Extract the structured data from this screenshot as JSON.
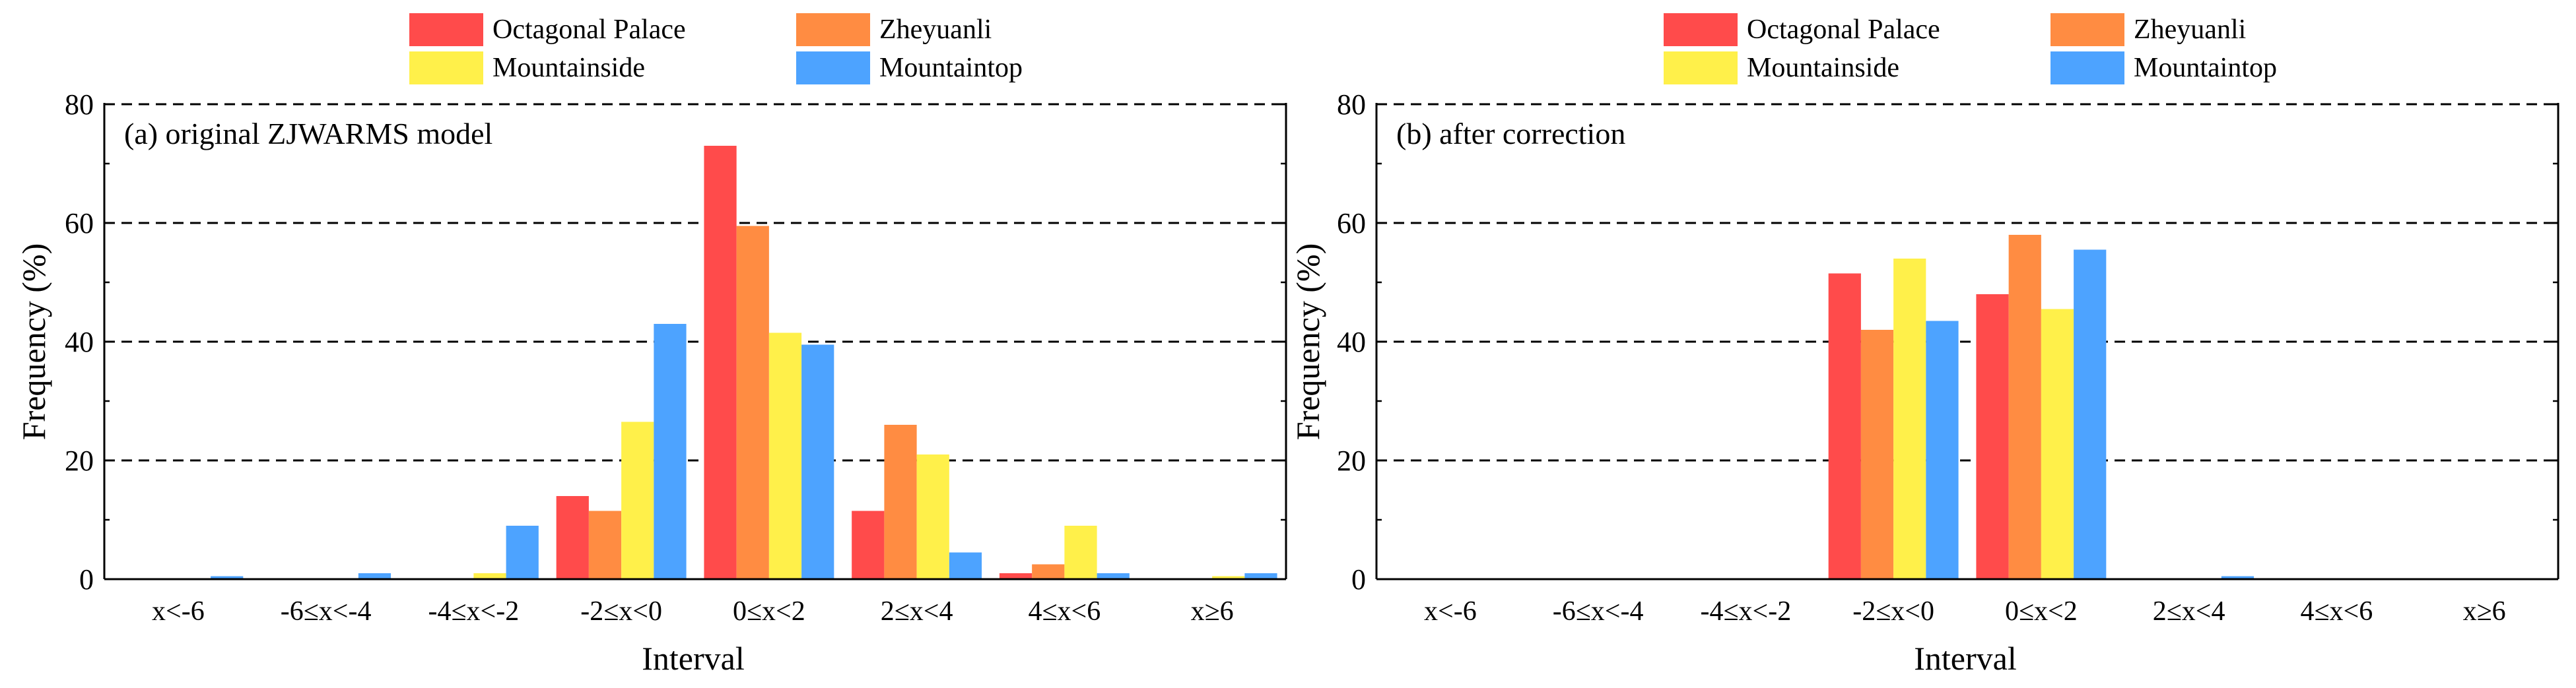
{
  "chart_data": [
    {
      "type": "bar",
      "title": "(a) original ZJWARMS model",
      "xlabel": "Interval",
      "ylabel": "Frequency (%)",
      "ylim": [
        0,
        80
      ],
      "yticks": [
        "0",
        "20",
        "40",
        "60",
        "80"
      ],
      "grid": "horizontal dashed",
      "legend_position": "top-center",
      "categories": [
        "x<-6",
        "-6≤x<-4",
        "-4≤x<-2",
        "-2≤x<0",
        "0≤x<2",
        "2≤x<4",
        "4≤x<6",
        "x≥6"
      ],
      "series": [
        {
          "name": "Octagonal Palace",
          "color": "#FF4B4B",
          "values": [
            0,
            0,
            0,
            14,
            73,
            11.5,
            1,
            0
          ]
        },
        {
          "name": "Zheyuanli",
          "color": "#FF8C42",
          "values": [
            0,
            0,
            0,
            11.5,
            59.5,
            26,
            2.5,
            0
          ]
        },
        {
          "name": "Mountainside",
          "color": "#FFF04A",
          "values": [
            0,
            0,
            1,
            26.5,
            41.5,
            21,
            9,
            0.5
          ]
        },
        {
          "name": "Mountaintop",
          "color": "#4DA3FF",
          "values": [
            0.5,
            1,
            9,
            43,
            39.5,
            4.5,
            1,
            1
          ]
        }
      ]
    },
    {
      "type": "bar",
      "title": "(b) after correction",
      "xlabel": "Interval",
      "ylabel": "Frequency (%)",
      "ylim": [
        0,
        80
      ],
      "yticks": [
        "0",
        "20",
        "40",
        "60",
        "80"
      ],
      "grid": "horizontal dashed",
      "legend_position": "top-center",
      "categories": [
        "x<-6",
        "-6≤x<-4",
        "-4≤x<-2",
        "-2≤x<0",
        "0≤x<2",
        "2≤x<4",
        "4≤x<6",
        "x≥6"
      ],
      "series": [
        {
          "name": "Octagonal Palace",
          "color": "#FF4B4B",
          "values": [
            0,
            0,
            0,
            51.5,
            48,
            0,
            0,
            0
          ]
        },
        {
          "name": "Zheyuanli",
          "color": "#FF8C42",
          "values": [
            0,
            0,
            0,
            42,
            58,
            0,
            0,
            0
          ]
        },
        {
          "name": "Mountainside",
          "color": "#FFF04A",
          "values": [
            0,
            0,
            0,
            54,
            45.5,
            0,
            0,
            0
          ]
        },
        {
          "name": "Mountaintop",
          "color": "#4DA3FF",
          "values": [
            0,
            0,
            0,
            43.5,
            55.5,
            0.5,
            0,
            0
          ]
        }
      ]
    }
  ]
}
